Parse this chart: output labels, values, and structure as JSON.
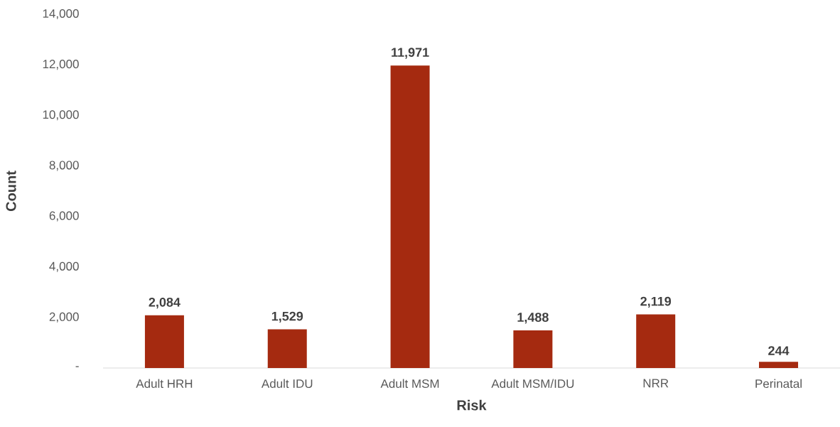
{
  "chart_data": {
    "type": "bar",
    "xlabel": "Risk",
    "ylabel": "Count",
    "categories": [
      "Adult HRH",
      "Adult IDU",
      "Adult MSM",
      "Adult MSM/IDU",
      "NRR",
      "Perinatal"
    ],
    "values": [
      2084,
      1529,
      11971,
      1488,
      2119,
      244
    ],
    "value_labels": [
      "2,084",
      "1,529",
      "11,971",
      "1,488",
      "2,119",
      "244"
    ],
    "color": "#a52a10",
    "ylim": [
      0,
      14000
    ],
    "yticks": [
      {
        "value": 0,
        "label": "-"
      },
      {
        "value": 2000,
        "label": "2,000"
      },
      {
        "value": 4000,
        "label": "4,000"
      },
      {
        "value": 6000,
        "label": "6,000"
      },
      {
        "value": 8000,
        "label": "8,000"
      },
      {
        "value": 10000,
        "label": "10,000"
      },
      {
        "value": 12000,
        "label": "12,000"
      },
      {
        "value": 14000,
        "label": "14,000"
      }
    ],
    "grid": false
  }
}
